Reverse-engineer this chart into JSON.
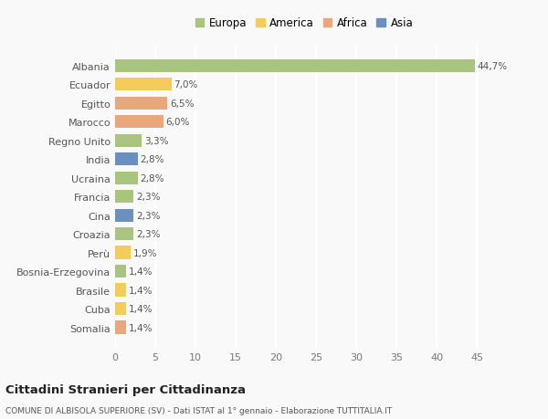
{
  "countries": [
    "Albania",
    "Ecuador",
    "Egitto",
    "Marocco",
    "Regno Unito",
    "India",
    "Ucraina",
    "Francia",
    "Cina",
    "Croazia",
    "Perù",
    "Bosnia-Erzegovina",
    "Brasile",
    "Cuba",
    "Somalia"
  ],
  "values": [
    44.7,
    7.0,
    6.5,
    6.0,
    3.3,
    2.8,
    2.8,
    2.3,
    2.3,
    2.3,
    1.9,
    1.4,
    1.4,
    1.4,
    1.4
  ],
  "labels": [
    "44,7%",
    "7,0%",
    "6,5%",
    "6,0%",
    "3,3%",
    "2,8%",
    "2,8%",
    "2,3%",
    "2,3%",
    "2,3%",
    "1,9%",
    "1,4%",
    "1,4%",
    "1,4%",
    "1,4%"
  ],
  "continents": [
    "Europa",
    "America",
    "Africa",
    "Africa",
    "Europa",
    "Asia",
    "Europa",
    "Europa",
    "Asia",
    "Europa",
    "America",
    "Europa",
    "America",
    "America",
    "Africa"
  ],
  "continent_colors": {
    "Europa": "#a8c47e",
    "America": "#f5cb5c",
    "Africa": "#e8a87c",
    "Asia": "#6b8fbf"
  },
  "legend_items": [
    "Europa",
    "America",
    "Africa",
    "Asia"
  ],
  "legend_colors": [
    "#a8c47e",
    "#f5cb5c",
    "#e8a87c",
    "#6b8fbf"
  ],
  "xlim": [
    0,
    47
  ],
  "xticks": [
    0,
    5,
    10,
    15,
    20,
    25,
    30,
    35,
    40,
    45
  ],
  "title": "Cittadini Stranieri per Cittadinanza",
  "subtitle": "COMUNE DI ALBISOLA SUPERIORE (SV) - Dati ISTAT al 1° gennaio - Elaborazione TUTTITALIA.IT",
  "bg_color": "#f9f9f9",
  "grid_color": "#ffffff",
  "bar_height": 0.7
}
